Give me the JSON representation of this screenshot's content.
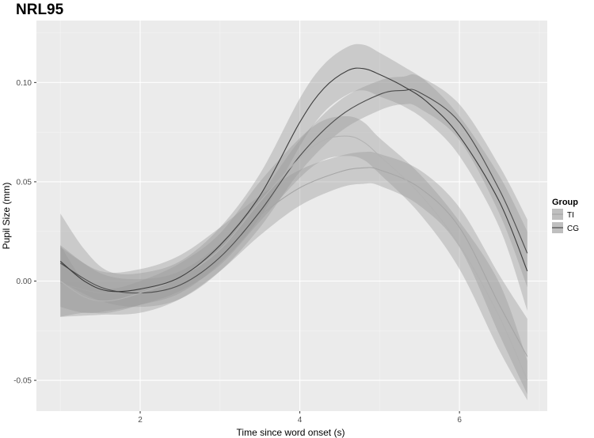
{
  "chart_data": {
    "type": "line",
    "title": "NRL95",
    "xlabel": "Time since word onset (s)",
    "ylabel": "Pupil Size (mm)",
    "xlim": [
      0.7,
      7.1
    ],
    "ylim": [
      -0.0655,
      0.1312
    ],
    "x_ticks": [
      2,
      4,
      6
    ],
    "y_ticks": [
      -0.05,
      0.0,
      0.05,
      0.1
    ],
    "x_tick_labels": [
      "2",
      "4",
      "6"
    ],
    "y_tick_labels": [
      "-0.05",
      "0.00",
      "0.05",
      "0.10"
    ],
    "grid": true,
    "legend_title": "Group",
    "legend_position": "right",
    "series": [
      {
        "name": "TI",
        "style": "smooth",
        "color": "#a6a6a6",
        "x": [
          1.0,
          1.5,
          2.0,
          2.5,
          3.0,
          3.5,
          4.0,
          4.5,
          4.8,
          5.0,
          5.5,
          6.0,
          6.5,
          6.85
        ],
        "y": [
          -0.001,
          -0.006,
          -0.005,
          0.002,
          0.016,
          0.033,
          0.047,
          0.055,
          0.057,
          0.056,
          0.047,
          0.027,
          -0.012,
          -0.038
        ],
        "ci_lower": [
          -0.018,
          -0.017,
          -0.016,
          -0.009,
          0.005,
          0.023,
          0.038,
          0.047,
          0.049,
          0.048,
          0.038,
          0.017,
          -0.027,
          -0.057
        ],
        "ci_upper": [
          0.017,
          0.005,
          0.006,
          0.013,
          0.027,
          0.043,
          0.056,
          0.063,
          0.065,
          0.064,
          0.056,
          0.037,
          0.003,
          -0.019
        ]
      },
      {
        "name": "CG",
        "style": "smooth",
        "color": "#4d4d4d",
        "x": [
          1.0,
          1.5,
          2.0,
          2.5,
          3.0,
          3.5,
          4.0,
          4.5,
          5.0,
          5.3,
          5.5,
          6.0,
          6.5,
          6.85
        ],
        "y": [
          0.009,
          -0.003,
          -0.006,
          -0.002,
          0.012,
          0.035,
          0.063,
          0.083,
          0.094,
          0.096,
          0.095,
          0.08,
          0.046,
          0.014
        ],
        "ci_lower": [
          0.0,
          -0.01,
          -0.013,
          -0.009,
          0.005,
          0.027,
          0.055,
          0.075,
          0.086,
          0.089,
          0.087,
          0.071,
          0.034,
          -0.003
        ],
        "ci_upper": [
          0.018,
          0.004,
          0.001,
          0.005,
          0.019,
          0.043,
          0.071,
          0.091,
          0.101,
          0.103,
          0.103,
          0.089,
          0.058,
          0.031
        ]
      },
      {
        "name": "TI",
        "style": "wiggly",
        "color": "#b3b3b3",
        "x": [
          1.0,
          1.3,
          1.6,
          2.0,
          2.5,
          3.0,
          3.5,
          4.0,
          4.3,
          4.6,
          4.8,
          5.0,
          5.5,
          6.0,
          6.5,
          6.85
        ],
        "y": [
          0.0,
          -0.008,
          -0.01,
          -0.006,
          0.002,
          0.016,
          0.04,
          0.062,
          0.071,
          0.073,
          0.07,
          0.063,
          0.044,
          0.018,
          -0.018,
          -0.05
        ],
        "ci_lower": [
          -0.018,
          -0.016,
          -0.016,
          -0.012,
          -0.005,
          0.008,
          0.03,
          0.052,
          0.061,
          0.063,
          0.061,
          0.054,
          0.034,
          0.006,
          -0.035,
          -0.06
        ],
        "ci_upper": [
          0.018,
          0.0,
          -0.004,
          0.0,
          0.009,
          0.024,
          0.05,
          0.072,
          0.081,
          0.083,
          0.08,
          0.072,
          0.054,
          0.03,
          -0.001,
          -0.04
        ]
      },
      {
        "name": "CG",
        "style": "wiggly",
        "color": "#3d3d3d",
        "x": [
          1.0,
          1.3,
          1.6,
          2.0,
          2.5,
          3.0,
          3.5,
          4.0,
          4.3,
          4.6,
          4.8,
          5.0,
          5.3,
          5.6,
          6.0,
          6.5,
          6.85
        ],
        "y": [
          0.01,
          0.0,
          -0.005,
          -0.004,
          0.002,
          0.018,
          0.043,
          0.08,
          0.097,
          0.106,
          0.107,
          0.104,
          0.098,
          0.09,
          0.073,
          0.04,
          0.005
        ],
        "ci_lower": [
          -0.013,
          -0.016,
          -0.015,
          -0.012,
          -0.006,
          0.009,
          0.032,
          0.068,
          0.085,
          0.094,
          0.096,
          0.093,
          0.088,
          0.08,
          0.063,
          0.027,
          -0.015
        ],
        "ci_upper": [
          0.034,
          0.016,
          0.005,
          0.004,
          0.01,
          0.027,
          0.054,
          0.092,
          0.109,
          0.118,
          0.119,
          0.115,
          0.108,
          0.1,
          0.083,
          0.053,
          0.025
        ]
      }
    ],
    "legend": [
      {
        "label": "TI",
        "color": "#a6a6a6"
      },
      {
        "label": "CG",
        "color": "#4d4d4d"
      }
    ]
  }
}
